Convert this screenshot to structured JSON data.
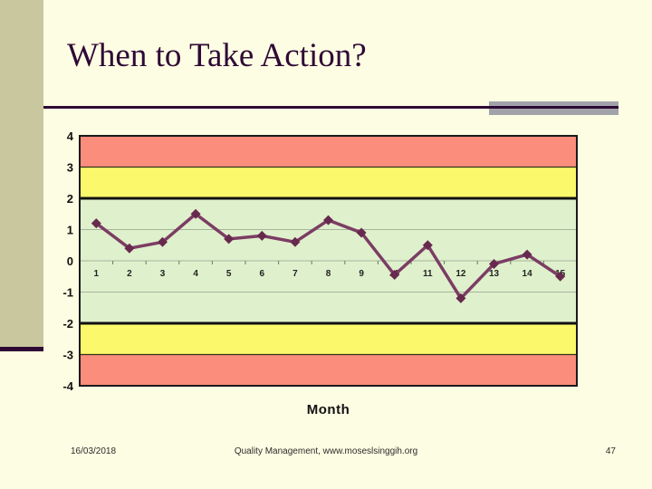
{
  "slide": {
    "title": "When to Take Action?",
    "background_color": "#FDFDE3",
    "left_bar_color": "#C9C79D",
    "accent_purple": "#2F0936",
    "gray_bar_color": "#A2A2AA"
  },
  "footer": {
    "date": "16/03/2018",
    "center": "Quality Management, www.moseslsinggih.org",
    "page_number": "47"
  },
  "chart_data": {
    "type": "line",
    "title": "",
    "xlabel": "Month",
    "ylabel": "",
    "categories": [
      "1",
      "2",
      "3",
      "4",
      "5",
      "6",
      "7",
      "8",
      "9",
      "10",
      "11",
      "12",
      "13",
      "14",
      "15"
    ],
    "values": [
      1.2,
      0.4,
      0.6,
      1.5,
      0.7,
      0.8,
      0.6,
      1.3,
      0.9,
      -0.45,
      0.5,
      -1.2,
      -0.1,
      0.2,
      -0.5
    ],
    "ylim": [
      -4,
      4
    ],
    "yticks": [
      4,
      3,
      2,
      1,
      0,
      -1,
      -2,
      -3,
      -4
    ],
    "grid": true,
    "legend": "none",
    "zones": [
      {
        "label": "red-upper",
        "from": 3,
        "to": 4,
        "color": "#FA8D7C"
      },
      {
        "label": "yellow-upper",
        "from": 2,
        "to": 3,
        "color": "#FBF96B"
      },
      {
        "label": "green-center",
        "from": -2,
        "to": 2,
        "color": "#DFF0CC"
      },
      {
        "label": "yellow-lower",
        "from": -3,
        "to": -2,
        "color": "#FBF96B"
      },
      {
        "label": "red-lower",
        "from": -4,
        "to": -3,
        "color": "#FA8D7C"
      }
    ],
    "zone_strong_lines": [
      2,
      -2
    ],
    "zone_thin_lines": [
      3,
      -3
    ],
    "gridline_values": [
      1,
      0,
      -1
    ],
    "line_color": "#7B3D63",
    "marker_color": "#67294E",
    "gridline_color": "#A5B59B",
    "border_color": "#1a1a1a"
  }
}
